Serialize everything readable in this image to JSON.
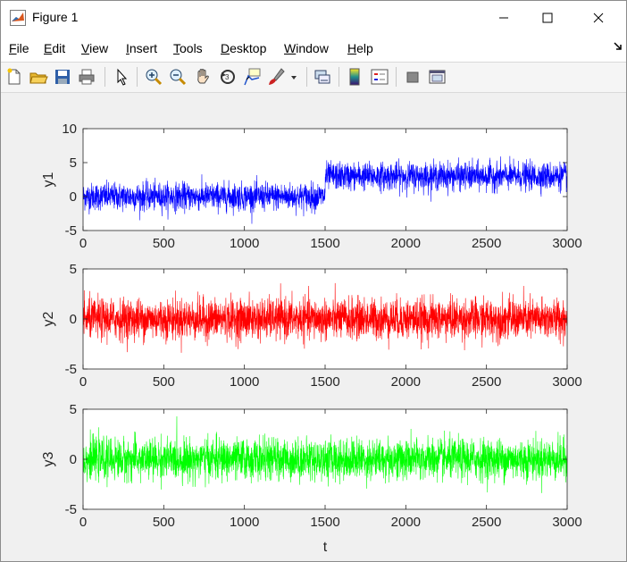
{
  "window": {
    "title": "Figure 1"
  },
  "menubar": [
    {
      "label": "File",
      "mn": "F",
      "rest": "ile"
    },
    {
      "label": "Edit",
      "mn": "E",
      "rest": "dit"
    },
    {
      "label": "View",
      "mn": "V",
      "rest": "iew"
    },
    {
      "label": "Insert",
      "mn": "I",
      "rest": "nsert"
    },
    {
      "label": "Tools",
      "mn": "T",
      "rest": "ools"
    },
    {
      "label": "Desktop",
      "mn": "D",
      "rest": "esktop"
    },
    {
      "label": "Window",
      "mn": "W",
      "rest": "indow"
    },
    {
      "label": "Help",
      "mn": "H",
      "rest": "elp"
    }
  ],
  "toolbar": [
    "new-figure-icon",
    "open-file-icon",
    "save-icon",
    "print-icon",
    "edit-plot-arrow-icon",
    "zoom-in-icon",
    "zoom-out-icon",
    "pan-hand-icon",
    "rotate-3d-icon",
    "data-cursor-icon",
    "brush-icon",
    "link-plot-icon",
    "colorbar-icon",
    "legend-icon",
    "hide-plot-tools-icon",
    "show-plot-tools-icon"
  ],
  "chart_data": [
    {
      "type": "line",
      "ylabel": "y1",
      "xlim": [
        0,
        3000
      ],
      "ylim": [
        -5,
        10
      ],
      "xticks": [
        "0",
        "500",
        "1000",
        "1500",
        "2000",
        "2500",
        "3000"
      ],
      "yticks": [
        "-5",
        "0",
        "5",
        "10"
      ],
      "color": "#0000ff",
      "segments": [
        {
          "x_from": 1,
          "x_to": 1500,
          "mean": 0,
          "std": 1
        },
        {
          "x_from": 1501,
          "x_to": 3000,
          "mean": 3,
          "std": 1
        }
      ],
      "n_points": 3000
    },
    {
      "type": "line",
      "ylabel": "y2",
      "xlim": [
        0,
        3000
      ],
      "ylim": [
        -5,
        5
      ],
      "xticks": [
        "0",
        "500",
        "1000",
        "1500",
        "2000",
        "2500",
        "3000"
      ],
      "yticks": [
        "-5",
        "0",
        "5"
      ],
      "color": "#ff0000",
      "segments": [
        {
          "x_from": 1,
          "x_to": 3000,
          "mean": 0,
          "std": 1
        }
      ],
      "n_points": 3000
    },
    {
      "type": "line",
      "ylabel": "y3",
      "xlabel": "t",
      "xlim": [
        0,
        3000
      ],
      "ylim": [
        -5,
        5
      ],
      "xticks": [
        "0",
        "500",
        "1000",
        "1500",
        "2000",
        "2500",
        "3000"
      ],
      "yticks": [
        "-5",
        "0",
        "5"
      ],
      "color": "#00ff00",
      "segments": [
        {
          "x_from": 1,
          "x_to": 3000,
          "mean": 0,
          "std": 1
        }
      ],
      "n_points": 3000
    }
  ]
}
